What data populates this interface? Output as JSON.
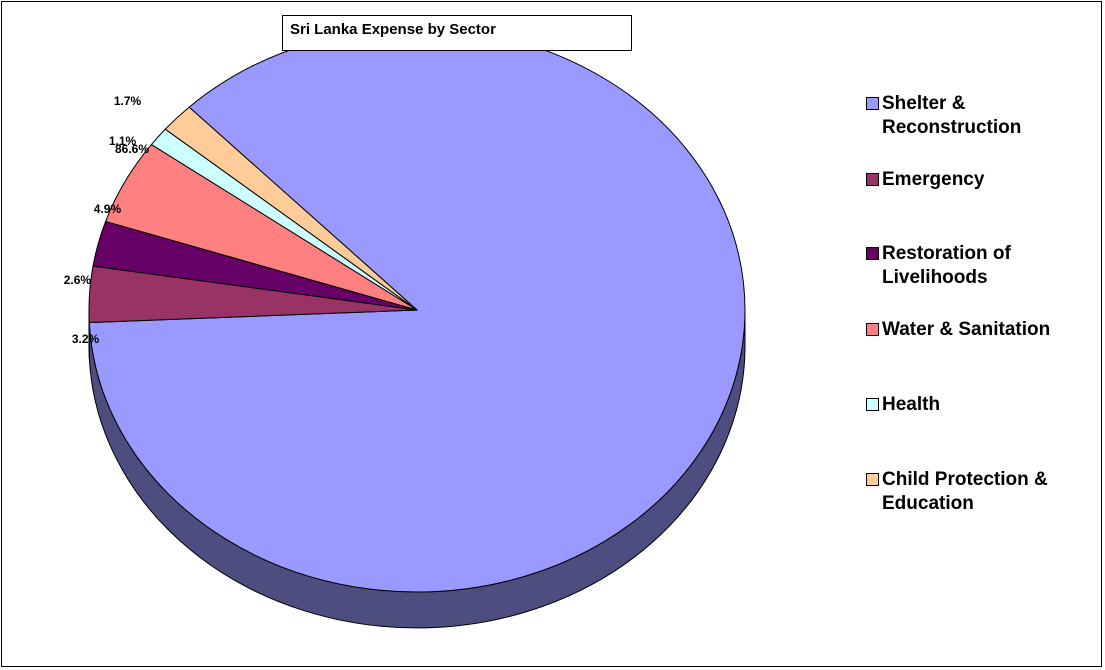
{
  "chart_data": {
    "type": "pie",
    "title": "Sri Lanka Expense by Sector",
    "categories": [
      "Shelter & Reconstruction",
      "Emergency",
      "Restoration of Livelihoods",
      "Water & Sanitation",
      "Health",
      "Child Protection & Education"
    ],
    "values": [
      86.6,
      3.2,
      2.6,
      4.9,
      1.1,
      1.7
    ],
    "value_labels": [
      "86.6%",
      "3.2%",
      "2.6%",
      "4.9%",
      "1.1%",
      "1.7%"
    ],
    "colors": [
      "#9999ff",
      "#993366",
      "#660066",
      "#ff8080",
      "#ccffff",
      "#ffcc99"
    ],
    "side_colors": [
      "#4d4d80",
      "#4d1a33",
      "#330033",
      "#804040",
      "#668080",
      "#80664d"
    ],
    "legend": {
      "position": "right",
      "lines": [
        [
          "Shelter &",
          "Reconstruction"
        ],
        [
          "Emergency"
        ],
        [
          "Restoration of",
          "Livelihoods"
        ],
        [
          "Water & Sanitation"
        ],
        [
          "Health"
        ],
        [
          "Child Protection &",
          "Education"
        ]
      ]
    },
    "style": "3d-pie",
    "grid": false
  }
}
